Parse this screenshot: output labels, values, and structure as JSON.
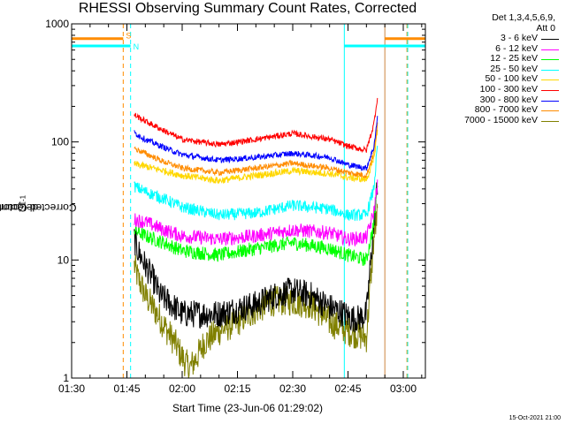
{
  "chart_data": {
    "type": "line",
    "title": "RHESSI Observing Summary Count Rates, Corrected",
    "xlabel_prefix": "Start Time (",
    "xlabel_time": "23-Jun-06 01:29:02",
    "xlabel_suffix": ")",
    "ylabel_main": "Corrected Count Rate (s",
    "ylabel_exp1": "-1",
    "ylabel_mid": " detector",
    "ylabel_exp2": "-1",
    "ylabel_end": ")",
    "x_unit": "minutes after 01:30 UT",
    "xlim": [
      0,
      96
    ],
    "ylim": [
      1,
      1000
    ],
    "yscale": "log",
    "x_ticks": [
      {
        "x": 0,
        "label": "01:30"
      },
      {
        "x": 15,
        "label": "01:45"
      },
      {
        "x": 30,
        "label": "02:00"
      },
      {
        "x": 45,
        "label": "02:15"
      },
      {
        "x": 60,
        "label": "02:30"
      },
      {
        "x": 75,
        "label": "02:45"
      },
      {
        "x": 90,
        "label": "03:00"
      }
    ],
    "y_ticks": [
      {
        "y": 1,
        "label": "1"
      },
      {
        "y": 10,
        "label": "10"
      },
      {
        "y": 100,
        "label": "100"
      },
      {
        "y": 1000,
        "label": "1000"
      }
    ],
    "legend_header": [
      "Det 1,3,4,5,6,9,",
      "Att 0"
    ],
    "series": [
      {
        "name": "3 - 6 keV",
        "color": "#000000",
        "x": [
          17,
          18,
          20,
          22,
          24,
          26,
          30,
          40,
          50,
          55,
          60,
          65,
          70,
          74,
          76,
          78,
          80,
          82,
          83
        ],
        "y": [
          15,
          12,
          9,
          7,
          5,
          4.5,
          3.5,
          3.5,
          4.2,
          5,
          5.5,
          5,
          4,
          3.5,
          3.2,
          3.2,
          3.5,
          20,
          45
        ]
      },
      {
        "name": "6 - 12 keV",
        "color": "#ff00ff",
        "x": [
          17,
          20,
          25,
          30,
          40,
          50,
          60,
          70,
          75,
          80,
          82,
          83
        ],
        "y": [
          22,
          21,
          18,
          16,
          15,
          16,
          18,
          17,
          15,
          15.5,
          25,
          45
        ]
      },
      {
        "name": "12 - 25 keV",
        "color": "#00ff00",
        "x": [
          17,
          20,
          25,
          30,
          40,
          50,
          60,
          70,
          75,
          80,
          82,
          83
        ],
        "y": [
          18,
          16,
          14,
          12,
          11,
          12.5,
          14,
          12.5,
          11,
          10,
          20,
          45
        ]
      },
      {
        "name": "25 - 50 keV",
        "color": "#00ffff",
        "x": [
          17,
          20,
          25,
          30,
          40,
          50,
          60,
          70,
          75,
          80,
          82,
          83
        ],
        "y": [
          42,
          38,
          33,
          28,
          24,
          25,
          29,
          27,
          24,
          24,
          40,
          90
        ]
      },
      {
        "name": "50 - 100 keV",
        "color": "#ffd700",
        "x": [
          17,
          20,
          25,
          30,
          40,
          50,
          60,
          70,
          75,
          80,
          82,
          83
        ],
        "y": [
          65,
          62,
          57,
          52,
          47,
          52,
          57,
          54,
          50,
          48,
          70,
          130
        ]
      },
      {
        "name": "100 - 300 keV",
        "color": "#ff0000",
        "x": [
          17,
          20,
          25,
          30,
          40,
          50,
          60,
          70,
          75,
          80,
          82,
          83
        ],
        "y": [
          170,
          150,
          125,
          105,
          95,
          105,
          118,
          105,
          92,
          85,
          140,
          240
        ]
      },
      {
        "name": "300 - 800 keV",
        "color": "#0000ff",
        "x": [
          17,
          20,
          25,
          30,
          40,
          50,
          60,
          70,
          75,
          80,
          82,
          83
        ],
        "y": [
          120,
          105,
          90,
          78,
          70,
          74,
          80,
          74,
          64,
          60,
          90,
          160
        ]
      },
      {
        "name": "800 - 7000 keV",
        "color": "#ff8c00",
        "x": [
          17,
          20,
          25,
          30,
          40,
          50,
          60,
          70,
          75,
          80,
          82,
          83
        ],
        "y": [
          88,
          80,
          68,
          60,
          55,
          60,
          66,
          60,
          55,
          52,
          80,
          140
        ]
      },
      {
        "name": "7000 - 15000 keV",
        "color": "#808000",
        "x": [
          17,
          18,
          19,
          20,
          22,
          24,
          26,
          28,
          30,
          32,
          34,
          36,
          40,
          45,
          50,
          55,
          60,
          65,
          70,
          75,
          80,
          82,
          83
        ],
        "y": [
          9,
          7,
          6,
          5,
          4,
          3.2,
          2.5,
          2,
          1.5,
          1.2,
          1.5,
          2,
          2.5,
          3,
          3.8,
          4.5,
          4.5,
          4.2,
          3,
          2.5,
          2.2,
          15,
          25
        ]
      }
    ],
    "status_bars": [
      {
        "label": "S",
        "color": "#ff8c00",
        "level": 750,
        "segments": [
          [
            0,
            14
          ],
          [
            85,
            96
          ]
        ]
      },
      {
        "label": "N",
        "color": "#00ffff",
        "level": 650,
        "segments": [
          [
            0,
            16
          ],
          [
            74,
            96
          ]
        ]
      }
    ],
    "vertical_markers": [
      {
        "x": 14.0,
        "color": "#ff8c00",
        "style": "dashed"
      },
      {
        "x": 16.0,
        "color": "#00ffff",
        "style": "dashed"
      },
      {
        "x": 74.0,
        "color": "#00ffff",
        "style": "solid"
      },
      {
        "x": 85.0,
        "color": "#cd853f",
        "style": "solid"
      },
      {
        "x": 91.0,
        "color": "#ff8c00",
        "style": "dashed"
      },
      {
        "x": 91.2,
        "color": "#00ffff",
        "style": "dashed"
      }
    ]
  },
  "footer_stamp": "15-Oct-2021 21:00"
}
